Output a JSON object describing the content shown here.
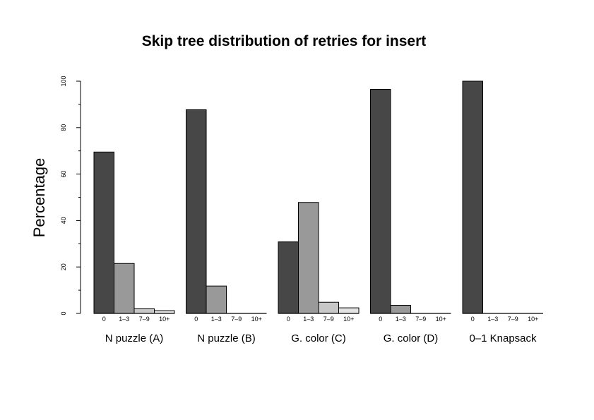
{
  "chart_data": {
    "type": "bar",
    "title": "Skip tree distribution of retries for insert",
    "xlabel": "",
    "ylabel": "Percentage",
    "ylim": [
      0,
      100
    ],
    "yticks": [
      "0",
      "20",
      "40",
      "60",
      "80",
      "100"
    ],
    "categories": [
      "0",
      "1–3",
      "7–9",
      "10+"
    ],
    "colors": [
      "#474747",
      "#999999",
      "#c8c8c8",
      "#e4e4e4"
    ],
    "grid": false,
    "legend": "none",
    "groups": [
      {
        "name": "N puzzle (A)",
        "values": [
          69.5,
          21.5,
          2.0,
          1.2
        ]
      },
      {
        "name": "N puzzle (B)",
        "values": [
          87.7,
          11.8,
          0.0,
          0.0
        ]
      },
      {
        "name": "G. color (C)",
        "values": [
          30.8,
          47.8,
          4.8,
          2.4
        ]
      },
      {
        "name": "G. color (D)",
        "values": [
          96.5,
          3.5,
          0.0,
          0.0
        ]
      },
      {
        "name": "0–1 Knapsack",
        "values": [
          100.0,
          0.0,
          0.0,
          0.0
        ]
      }
    ]
  }
}
